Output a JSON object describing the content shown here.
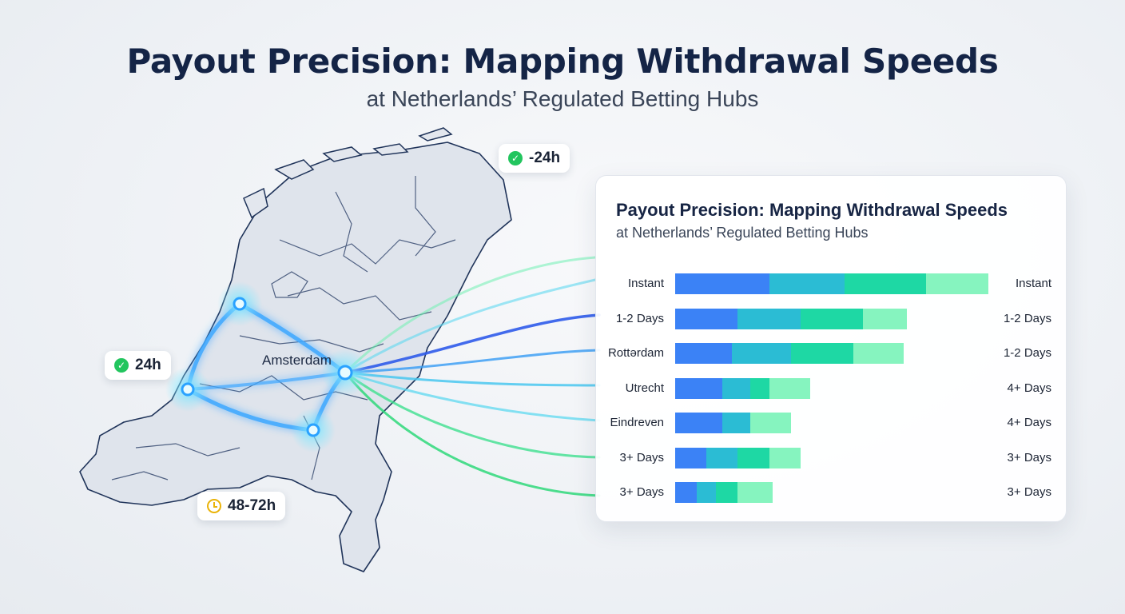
{
  "header": {
    "title": "Payout Precision: Mapping Withdrawal Speeds",
    "subtitle": "at Netherlands’ Regulated Betting Hubs"
  },
  "map": {
    "city_label": "Amsterdam",
    "badges": [
      {
        "text": "-24h",
        "icon": "check-icon"
      },
      {
        "text": "24h",
        "icon": "check-icon"
      },
      {
        "text": "48-72h",
        "icon": "clock-icon"
      }
    ]
  },
  "colors": {
    "segment_1": "#3b82f6",
    "segment_2": "#2bbcd4",
    "segment_3": "#1ed8a4",
    "segment_4": "#86f4bf",
    "badge_check": "#22c55e",
    "badge_clock": "#eab308"
  },
  "chart_data": {
    "type": "bar",
    "orientation": "horizontal",
    "stacked": true,
    "title": "Payout Precision: Mapping Withdrawal Speeds",
    "subtitle": "at Netherlands’ Regulated Betting Hubs",
    "categories": [
      "Instant",
      "1-2 Days",
      "Rottərdam",
      "Utrecht",
      "Eindreven",
      "3+ Days",
      "3+ Days"
    ],
    "right_labels": [
      "Instant",
      "1-2 Days",
      "1-2 Days",
      "4+ Days",
      "4+ Days",
      "3+ Days",
      "3+ Days"
    ],
    "series": [
      {
        "values": [
          30,
          20,
          18,
          15,
          15,
          10,
          7
        ]
      },
      {
        "values": [
          24,
          20,
          19,
          9,
          9,
          10,
          6
        ]
      },
      {
        "values": [
          26,
          20,
          20,
          6,
          0,
          10,
          7
        ]
      },
      {
        "values": [
          20,
          14,
          16,
          13,
          13,
          10,
          11
        ]
      }
    ],
    "xlim": [
      0,
      100
    ],
    "grid": false,
    "legend": "none"
  }
}
